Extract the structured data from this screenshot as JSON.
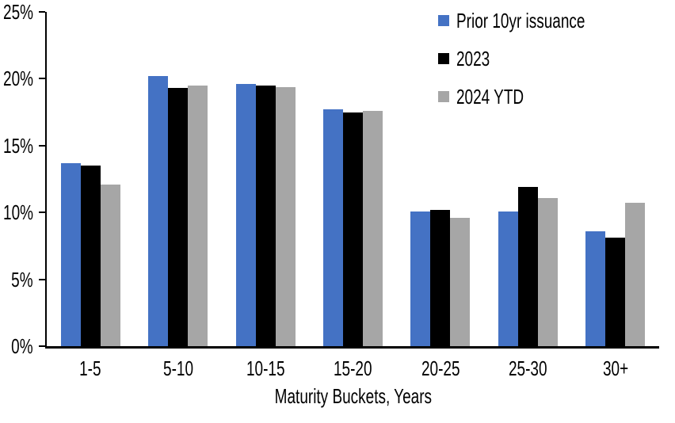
{
  "chart_data": {
    "type": "bar",
    "title": "",
    "categories": [
      "1-5",
      "5-10",
      "10-15",
      "15-20",
      "20-25",
      "25-30",
      "30+"
    ],
    "series": [
      {
        "name": "Prior 10yr issuance",
        "color": "#4472C4",
        "values": [
          13.7,
          20.2,
          19.6,
          17.7,
          10.1,
          10.1,
          8.6
        ]
      },
      {
        "name": "2023",
        "color": "#000000",
        "values": [
          13.5,
          19.3,
          19.5,
          17.5,
          10.2,
          11.9,
          8.1
        ]
      },
      {
        "name": "2024 YTD",
        "color": "#A6A6A6",
        "values": [
          12.1,
          19.5,
          19.4,
          17.6,
          9.6,
          11.1,
          10.7
        ]
      }
    ],
    "xlabel": "Maturity Buckets, Years",
    "ylabel": "",
    "ylim": [
      0,
      25
    ],
    "yticks": [
      25,
      20,
      15,
      10,
      5,
      0
    ],
    "ytick_labels": [
      "25%",
      "20%",
      "15%",
      "10%",
      "5%",
      "0%"
    ],
    "grid": false,
    "legend_position": "top-right"
  },
  "colors": {
    "background": "#FFFFFF",
    "axis": "#000000",
    "text": "#000000"
  }
}
